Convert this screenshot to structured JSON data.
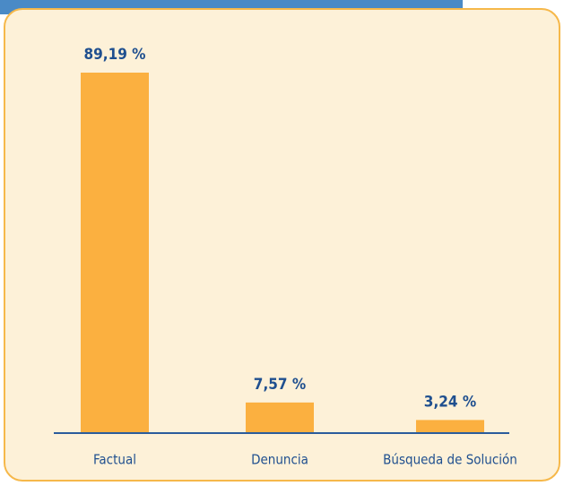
{
  "chart_data": {
    "type": "bar",
    "categories": [
      "Factual",
      "Denuncia",
      "Búsqueda de Solución"
    ],
    "values": [
      89.19,
      7.57,
      3.24
    ],
    "value_labels": [
      "89,19 %",
      "7,57 %",
      "3,24 %"
    ],
    "color": "#fbb040"
  }
}
